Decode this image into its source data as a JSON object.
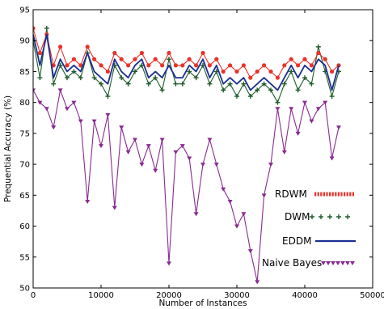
{
  "chart_data": {
    "type": "line",
    "title": "",
    "xlabel": "Number of Instances",
    "ylabel": "Prequential Accuracy (%)",
    "xlim": [
      0,
      50000
    ],
    "ylim": [
      50,
      95
    ],
    "xticks": [
      0,
      10000,
      20000,
      30000,
      40000,
      50000
    ],
    "yticks": [
      50,
      55,
      60,
      65,
      70,
      75,
      80,
      85,
      90,
      95
    ],
    "legend_position": "right-center",
    "x": [
      0,
      1000,
      2000,
      3000,
      4000,
      5000,
      6000,
      7000,
      8000,
      9000,
      10000,
      11000,
      12000,
      13000,
      14000,
      15000,
      16000,
      17000,
      18000,
      19000,
      20000,
      21000,
      22000,
      23000,
      24000,
      25000,
      26000,
      27000,
      28000,
      29000,
      30000,
      31000,
      32000,
      33000,
      34000,
      35000,
      36000,
      37000,
      38000,
      39000,
      40000,
      41000,
      42000,
      43000,
      44000,
      45000
    ],
    "series": [
      {
        "name": "RDWM",
        "color": "#e8332a",
        "marker": "dot",
        "values": [
          92,
          88,
          91,
          86,
          89,
          86,
          87,
          86,
          89,
          87,
          86,
          85,
          88,
          87,
          86,
          87,
          88,
          86,
          87,
          86,
          88,
          86,
          86,
          87,
          86,
          88,
          86,
          87,
          85,
          86,
          85,
          86,
          84,
          85,
          86,
          85,
          84,
          86,
          87,
          86,
          87,
          86,
          88,
          87,
          85,
          86
        ]
      },
      {
        "name": "DWM",
        "color": "#1f5c2a",
        "marker": "plus",
        "values": [
          90,
          84,
          92,
          83,
          86,
          84,
          85,
          84,
          88,
          84,
          83,
          81,
          86,
          84,
          83,
          85,
          86,
          83,
          84,
          82,
          87,
          83,
          83,
          85,
          84,
          86,
          83,
          85,
          82,
          83,
          81,
          83,
          81,
          82,
          83,
          82,
          80,
          83,
          85,
          82,
          84,
          83,
          89,
          85,
          81,
          85
        ]
      },
      {
        "name": "EDDM",
        "color": "#1a2f8f",
        "marker": "line",
        "values": [
          91,
          86,
          91,
          84,
          87,
          85,
          86,
          85,
          88,
          85,
          84,
          83,
          87,
          85,
          84,
          86,
          87,
          84,
          85,
          84,
          86,
          84,
          84,
          86,
          85,
          87,
          84,
          86,
          83,
          84,
          83,
          84,
          82,
          83,
          84,
          83,
          82,
          84,
          86,
          84,
          86,
          85,
          87,
          86,
          82,
          86
        ]
      },
      {
        "name": "Naive Bayes",
        "color": "#8a2a90",
        "marker": "triangle",
        "values": [
          82,
          80,
          79,
          76,
          82,
          79,
          80,
          77,
          64,
          77,
          73,
          78,
          63,
          76,
          72,
          74,
          70,
          73,
          69,
          74,
          54,
          72,
          73,
          71,
          62,
          70,
          74,
          70,
          66,
          64,
          60,
          62,
          56,
          51,
          65,
          70,
          79,
          72,
          79,
          75,
          80,
          77,
          79,
          80,
          71,
          76
        ]
      }
    ]
  }
}
